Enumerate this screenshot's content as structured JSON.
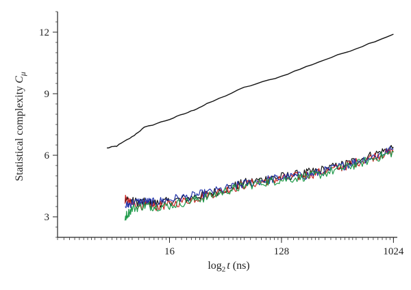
{
  "chart_data": {
    "type": "line",
    "title": "",
    "xlabel": {
      "base": "log",
      "sub": "2",
      "var": "t",
      "unit": " (ns)"
    },
    "ylabel": {
      "main": "Statistical complexity ",
      "var": "C",
      "sub": "μ"
    },
    "x_scale": "log2",
    "xlim": [
      2,
      1100
    ],
    "ylim": [
      2,
      13
    ],
    "x_ticks": [
      16,
      128,
      1024
    ],
    "x_tick_labels": [
      "16",
      "128",
      "1024"
    ],
    "y_ticks": [
      3,
      6,
      9,
      12
    ],
    "y_tick_labels": [
      "3",
      "6",
      "9",
      "12"
    ],
    "grid": false,
    "legend": "none",
    "series": [
      {
        "color": "#111111",
        "x": [
          5.0,
          6.0,
          8.0,
          10.0,
          16.0,
          24.0,
          32.0,
          64.0,
          128.0,
          256.0,
          512.0,
          1024.0
        ],
        "y": [
          6.35,
          6.45,
          6.9,
          7.35,
          7.75,
          8.15,
          8.5,
          9.3,
          9.85,
          10.55,
          11.2,
          11.9
        ]
      },
      {
        "color": "#111111",
        "x": [
          7.0,
          8.0,
          10.0,
          12.0,
          16.0,
          24.0,
          32.0,
          48.0,
          64.0,
          96.0,
          128.0,
          192.0,
          256.0,
          384.0,
          512.0,
          768.0,
          1024.0
        ],
        "y": [
          3.85,
          3.75,
          3.7,
          3.65,
          3.75,
          3.95,
          4.1,
          4.4,
          4.65,
          4.85,
          4.95,
          5.1,
          5.25,
          5.5,
          5.75,
          6.1,
          6.4
        ]
      },
      {
        "color": "#cc2222",
        "x": [
          7.0,
          8.0,
          10.0,
          12.0,
          16.0,
          24.0,
          32.0,
          48.0,
          64.0,
          96.0,
          128.0,
          192.0,
          256.0,
          384.0,
          512.0,
          768.0,
          1024.0
        ],
        "y": [
          3.85,
          3.6,
          3.55,
          3.5,
          3.6,
          3.85,
          4.05,
          4.35,
          4.55,
          4.75,
          4.85,
          5.0,
          5.15,
          5.4,
          5.65,
          6.0,
          6.15
        ]
      },
      {
        "color": "#2233aa",
        "x": [
          7.0,
          8.0,
          10.0,
          12.0,
          16.0,
          24.0,
          32.0,
          48.0,
          64.0,
          96.0,
          128.0,
          192.0,
          256.0,
          384.0,
          512.0,
          768.0,
          1024.0
        ],
        "y": [
          3.5,
          3.7,
          3.75,
          3.7,
          3.85,
          4.0,
          4.15,
          4.4,
          4.6,
          4.8,
          4.9,
          5.0,
          5.15,
          5.45,
          5.7,
          6.0,
          6.3
        ]
      },
      {
        "color": "#1f9a4a",
        "x": [
          7.0,
          8.0,
          10.0,
          12.0,
          16.0,
          24.0,
          32.0,
          48.0,
          64.0,
          96.0,
          128.0,
          192.0,
          256.0,
          384.0,
          512.0,
          768.0,
          1024.0
        ],
        "y": [
          3.0,
          3.4,
          3.55,
          3.5,
          3.55,
          3.8,
          3.95,
          4.3,
          4.5,
          4.7,
          4.8,
          4.95,
          5.05,
          5.35,
          5.55,
          5.9,
          6.15
        ]
      }
    ]
  }
}
